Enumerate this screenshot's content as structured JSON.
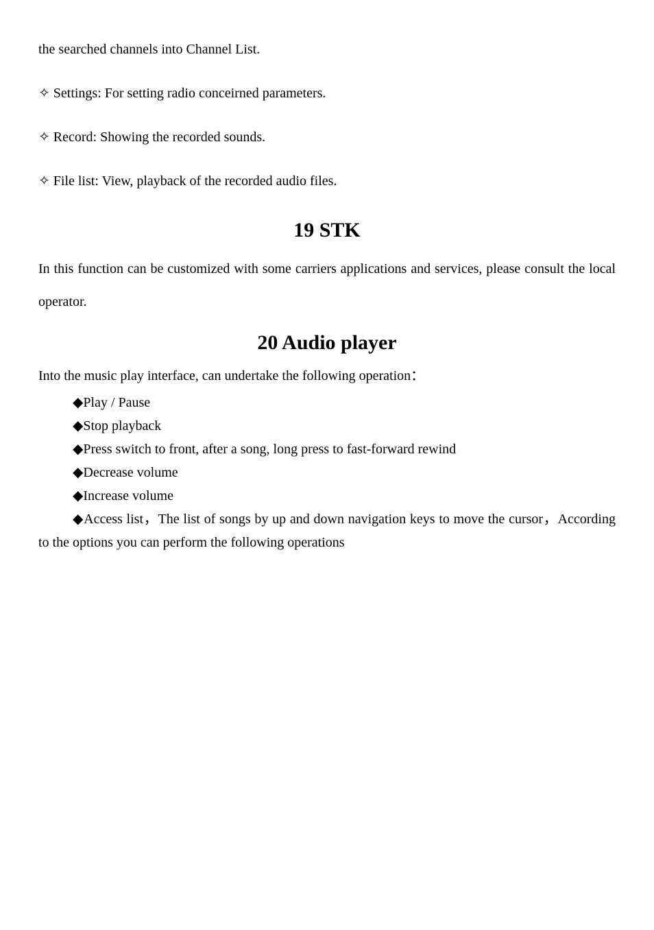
{
  "fragment": "the searched channels into Channel List.",
  "bullets": [
    "✧ Settings: For setting radio conceirned parameters.",
    "✧ Record: Showing the recorded sounds.",
    "✧ File list: View, playback of the recorded audio files."
  ],
  "heading19": "19 STK",
  "stk_body": "In this function can be customized with some carriers applications and services, please consult the local operator.",
  "heading20": "20 Audio player",
  "audio_intro": "Into the music play interface, can undertake the following operation：",
  "diamond_items": [
    "◆Play / Pause",
    "◆Stop playback",
    "◆Press switch to front, after a song, long press to fast-forward rewind",
    "◆Decrease volume",
    "◆Increase volume",
    "◆Access list，The list of songs by up and down navigation keys to move the cursor，According to the options you can perform the following operations"
  ],
  "colors": {
    "text": "#000000",
    "background": "#ffffff"
  },
  "typography": {
    "body_fontsize": 20,
    "heading_fontsize": 30,
    "font_family": "SimSun"
  }
}
